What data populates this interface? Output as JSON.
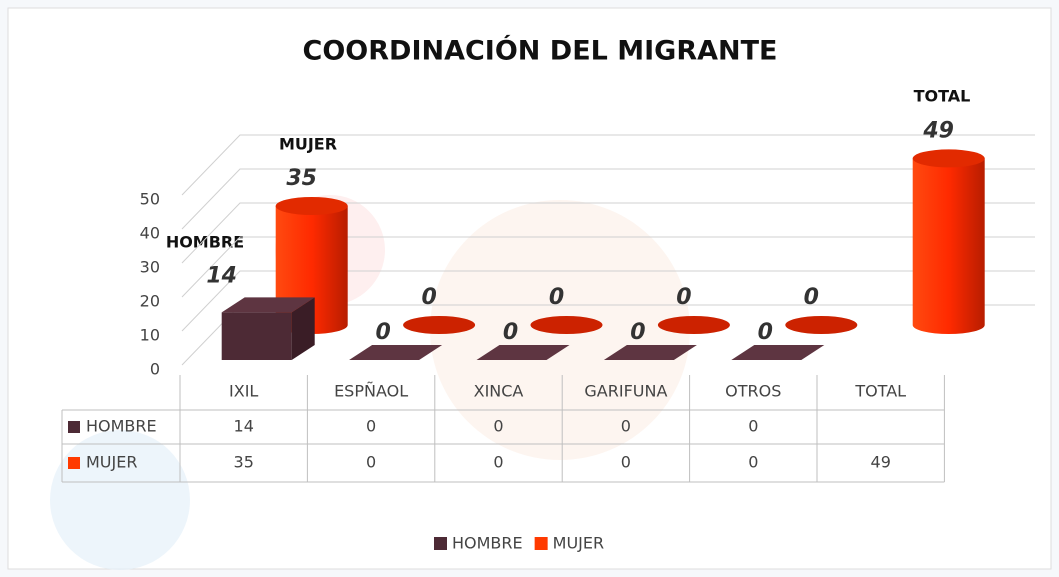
{
  "chart_data": {
    "type": "bar3d",
    "title": "COORDINACIÓN  DEL MIGRANTE",
    "categories": [
      "IXIL",
      "ESPÑAOL",
      "XINCA",
      "GARIFUNA",
      "OTROS",
      "TOTAL"
    ],
    "series": [
      {
        "name": "HOMBRE",
        "color": "#4d2a35",
        "values": [
          14,
          0,
          0,
          0,
          0,
          null
        ]
      },
      {
        "name": "MUJER",
        "color": "#ff3a00",
        "values": [
          35,
          0,
          0,
          0,
          0,
          49
        ]
      }
    ],
    "annotations": [
      "HOMBRE",
      "MUJER",
      "TOTAL"
    ],
    "ylim": [
      0,
      50
    ],
    "yticks": [
      0,
      10,
      20,
      30,
      40,
      50
    ],
    "grid": true,
    "data_table": true,
    "legend": "bottom"
  }
}
